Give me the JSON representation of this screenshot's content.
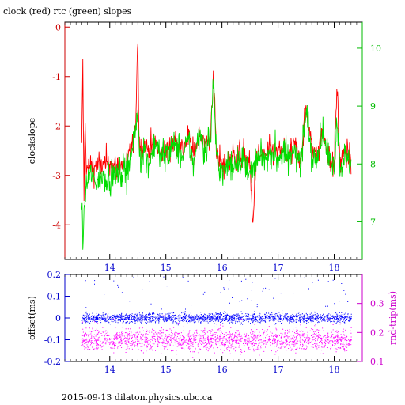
{
  "title": "clock (red) rtc (green) slopes",
  "footer": "2015-09-13  dilaton.physics.ubc.ca",
  "colors": {
    "clock": "#ff0000",
    "rtc": "#00dd00",
    "offset": "#0000ff",
    "rndtrip": "#ff00ff",
    "left_axis_top": "#cc0000",
    "right_axis_top": "#00bb00",
    "left_axis_bottom": "#0000cc",
    "right_axis_bottom": "#cc00cc",
    "x_axis": "#0000cc"
  },
  "chart_data": [
    {
      "type": "line",
      "title": "clock (red) rtc (green) slopes",
      "xlabel": "",
      "ylabel": "clockslope",
      "y2label": "",
      "xlim": [
        13.2,
        18.5
      ],
      "ylim": [
        -4.7,
        0.1
      ],
      "y2lim": [
        6.35,
        10.45
      ],
      "x_ticks": [
        14,
        15,
        16,
        17,
        18
      ],
      "y_ticks": [
        0,
        -1,
        -2,
        -3,
        -4
      ],
      "y2_ticks": [
        7,
        8,
        9,
        10
      ],
      "grid": false,
      "series": [
        {
          "name": "clock",
          "axis": "left",
          "x": [
            13.5,
            13.52,
            13.54,
            13.56,
            13.58,
            13.6,
            13.65,
            13.7,
            13.8,
            13.9,
            14.0,
            14.1,
            14.2,
            14.3,
            14.4,
            14.45,
            14.5,
            14.52,
            14.55,
            14.6,
            14.7,
            14.8,
            14.9,
            15.0,
            15.1,
            15.2,
            15.3,
            15.4,
            15.5,
            15.6,
            15.7,
            15.8,
            15.85,
            15.9,
            15.95,
            16.0,
            16.05,
            16.1,
            16.2,
            16.3,
            16.4,
            16.5,
            16.55,
            16.6,
            16.7,
            16.8,
            16.9,
            17.0,
            17.1,
            17.2,
            17.3,
            17.4,
            17.5,
            17.6,
            17.7,
            17.8,
            17.9,
            18.0,
            18.05,
            18.1,
            18.2,
            18.3
          ],
          "y": [
            -2.5,
            -0.6,
            -3.5,
            -1.9,
            -2.8,
            -2.9,
            -2.8,
            -2.85,
            -2.8,
            -2.8,
            -2.75,
            -2.85,
            -2.8,
            -2.8,
            -2.4,
            -2.3,
            -0.2,
            -2.2,
            -2.5,
            -2.4,
            -2.5,
            -2.3,
            -2.6,
            -2.5,
            -2.35,
            -2.3,
            -2.5,
            -2.2,
            -2.6,
            -2.1,
            -2.4,
            -2.2,
            -0.9,
            -2.5,
            -2.7,
            -2.8,
            -2.85,
            -2.7,
            -2.6,
            -2.55,
            -2.6,
            -2.8,
            -4.1,
            -2.7,
            -2.6,
            -2.6,
            -2.5,
            -2.55,
            -2.5,
            -2.6,
            -2.4,
            -2.7,
            -1.6,
            -2.5,
            -2.5,
            -2.1,
            -2.6,
            -2.8,
            -1.2,
            -2.7,
            -2.6,
            -2.7
          ]
        },
        {
          "name": "rtc",
          "axis": "right",
          "x": [
            13.5,
            13.52,
            13.54,
            13.56,
            13.58,
            13.6,
            13.65,
            13.7,
            13.8,
            13.9,
            14.0,
            14.1,
            14.2,
            14.3,
            14.4,
            14.45,
            14.5,
            14.52,
            14.55,
            14.6,
            14.7,
            14.8,
            14.9,
            15.0,
            15.1,
            15.2,
            15.3,
            15.4,
            15.5,
            15.6,
            15.7,
            15.8,
            15.85,
            15.9,
            15.95,
            16.0,
            16.05,
            16.1,
            16.2,
            16.3,
            16.4,
            16.5,
            16.55,
            16.6,
            16.7,
            16.8,
            16.9,
            17.0,
            17.1,
            17.2,
            17.3,
            17.4,
            17.5,
            17.6,
            17.7,
            17.8,
            17.9,
            18.0,
            18.05,
            18.1,
            18.2,
            18.3
          ],
          "y": [
            7.3,
            6.6,
            7.0,
            7.5,
            7.6,
            7.7,
            7.8,
            7.75,
            7.7,
            7.8,
            7.8,
            7.8,
            7.85,
            7.9,
            8.2,
            8.5,
            8.9,
            8.3,
            8.1,
            8.3,
            8.0,
            8.4,
            8.1,
            8.2,
            8.3,
            8.3,
            8.1,
            8.4,
            8.0,
            8.6,
            8.2,
            8.5,
            9.5,
            8.1,
            7.9,
            7.9,
            7.85,
            8.0,
            8.0,
            8.1,
            8.0,
            7.9,
            7.8,
            8.0,
            8.1,
            8.1,
            8.2,
            8.1,
            8.2,
            8.1,
            8.3,
            8.0,
            8.9,
            8.1,
            8.2,
            8.5,
            8.1,
            8.0,
            8.8,
            8.0,
            8.1,
            8.0
          ]
        }
      ]
    },
    {
      "type": "scatter",
      "xlabel": "",
      "ylabel": "offset(ms)",
      "y2label": "rnd-trip(ms)",
      "xlim": [
        13.2,
        18.5
      ],
      "ylim": [
        -0.2,
        0.2
      ],
      "y2lim": [
        0.1,
        0.4
      ],
      "x_ticks": [
        14,
        15,
        16,
        17,
        18
      ],
      "y_ticks": [
        0.2,
        0.1,
        0,
        -0.1,
        -0.2
      ],
      "y_tick_labels": [
        "0.2",
        "0.1",
        "0",
        "-0.1",
        "-0.2"
      ],
      "y2_ticks": [
        0.1,
        0.2,
        0.3
      ],
      "grid": false,
      "series": [
        {
          "name": "offset",
          "axis": "left",
          "x_range": [
            13.5,
            18.3
          ],
          "y_center": 0.0,
          "y_spread": 0.02,
          "outliers_up_to": 0.19
        },
        {
          "name": "rnd-trip",
          "axis": "right",
          "x_range": [
            13.5,
            18.3
          ],
          "y_center": 0.175,
          "y_spread": 0.035
        }
      ]
    }
  ]
}
